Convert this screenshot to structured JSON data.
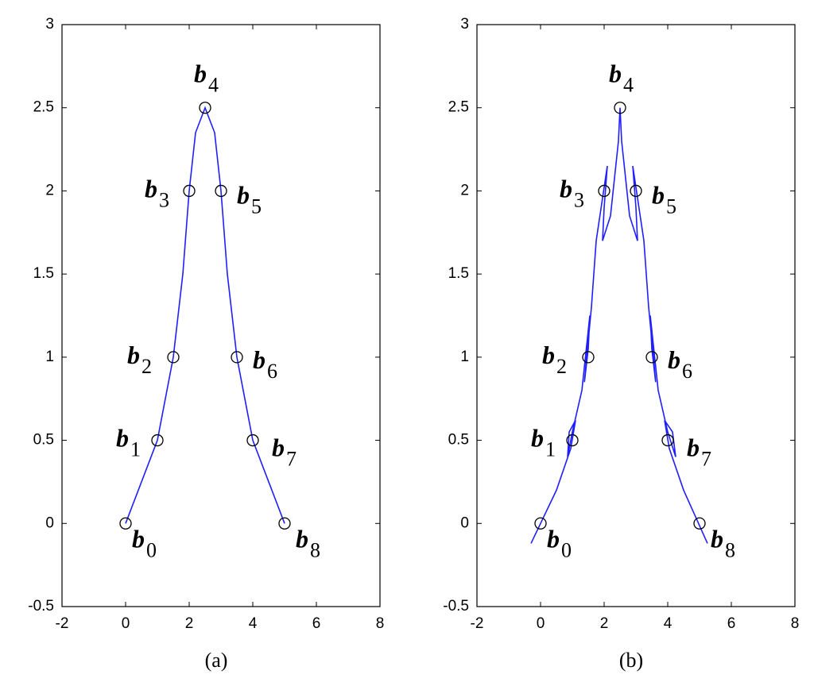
{
  "chart_data": [
    {
      "type": "line",
      "caption": "(a)",
      "x": [
        0,
        1,
        1.5,
        2,
        2.5,
        3,
        3.5,
        4,
        5
      ],
      "y": [
        0,
        0.5,
        1,
        2,
        2.5,
        2,
        1,
        0.5,
        0
      ],
      "point_labels": [
        {
          "base": "b",
          "sub": "0"
        },
        {
          "base": "b",
          "sub": "1"
        },
        {
          "base": "b",
          "sub": "2"
        },
        {
          "base": "b",
          "sub": "3"
        },
        {
          "base": "b",
          "sub": "4"
        },
        {
          "base": "b",
          "sub": "5"
        },
        {
          "base": "b",
          "sub": "6"
        },
        {
          "base": "b",
          "sub": "7"
        },
        {
          "base": "b",
          "sub": "8"
        }
      ],
      "curve": {
        "color": "#1f1fff",
        "x": [
          0,
          0.5,
          1,
          1.25,
          1.5,
          1.8,
          2,
          2.2,
          2.5,
          2.8,
          3,
          3.2,
          3.5,
          3.75,
          4,
          4.5,
          5
        ],
        "y": [
          0,
          0.25,
          0.5,
          0.75,
          1,
          1.5,
          2,
          2.35,
          2.5,
          2.35,
          2,
          1.5,
          1,
          0.75,
          0.5,
          0.25,
          0
        ]
      },
      "xlim": [
        -2,
        8
      ],
      "ylim": [
        -0.5,
        3
      ],
      "xticks": [
        -2,
        0,
        2,
        4,
        6,
        8
      ],
      "yticks": [
        -0.5,
        0,
        0.5,
        1,
        1.5,
        2,
        2.5,
        3
      ]
    },
    {
      "type": "line",
      "caption": "(b)",
      "x": [
        0,
        1,
        1.5,
        2,
        2.5,
        3,
        3.5,
        4,
        5
      ],
      "y": [
        0,
        0.5,
        1,
        2,
        2.5,
        2,
        1,
        0.5,
        0
      ],
      "point_labels": [
        {
          "base": "b",
          "sub": "0"
        },
        {
          "base": "b",
          "sub": "1"
        },
        {
          "base": "b",
          "sub": "2"
        },
        {
          "base": "b",
          "sub": "3"
        },
        {
          "base": "b",
          "sub": "4"
        },
        {
          "base": "b",
          "sub": "5"
        },
        {
          "base": "b",
          "sub": "6"
        },
        {
          "base": "b",
          "sub": "7"
        },
        {
          "base": "b",
          "sub": "8"
        }
      ],
      "curve": {
        "color": "#1f1fff",
        "x": [
          -0.3,
          0.5,
          0.95,
          1.1,
          0.9,
          0.85,
          1.0,
          1.3,
          1.55,
          1.5,
          1.38,
          1.45,
          1.6,
          1.75,
          2.1,
          2.0,
          1.95,
          2.2,
          2.45,
          2.5,
          2.55,
          2.8,
          3.05,
          3.0,
          2.9,
          3.25,
          3.4,
          3.55,
          3.62,
          3.5,
          3.45,
          3.7,
          4.0,
          4.25,
          4.15,
          3.9,
          4.05,
          4.5,
          5.25
        ],
        "y": [
          -0.12,
          0.2,
          0.45,
          0.62,
          0.55,
          0.4,
          0.55,
          0.8,
          1.25,
          1.05,
          0.85,
          1.0,
          1.3,
          1.7,
          2.15,
          1.9,
          1.7,
          1.85,
          2.3,
          2.5,
          2.3,
          1.85,
          1.7,
          1.9,
          2.15,
          1.7,
          1.3,
          1.0,
          0.85,
          1.05,
          1.25,
          0.8,
          0.55,
          0.4,
          0.55,
          0.62,
          0.45,
          0.2,
          -0.12
        ]
      },
      "xlim": [
        -2,
        8
      ],
      "ylim": [
        -0.5,
        3
      ],
      "xticks": [
        -2,
        0,
        2,
        4,
        6,
        8
      ],
      "yticks": [
        -0.5,
        0,
        0.5,
        1,
        1.5,
        2,
        2.5,
        3
      ]
    }
  ]
}
